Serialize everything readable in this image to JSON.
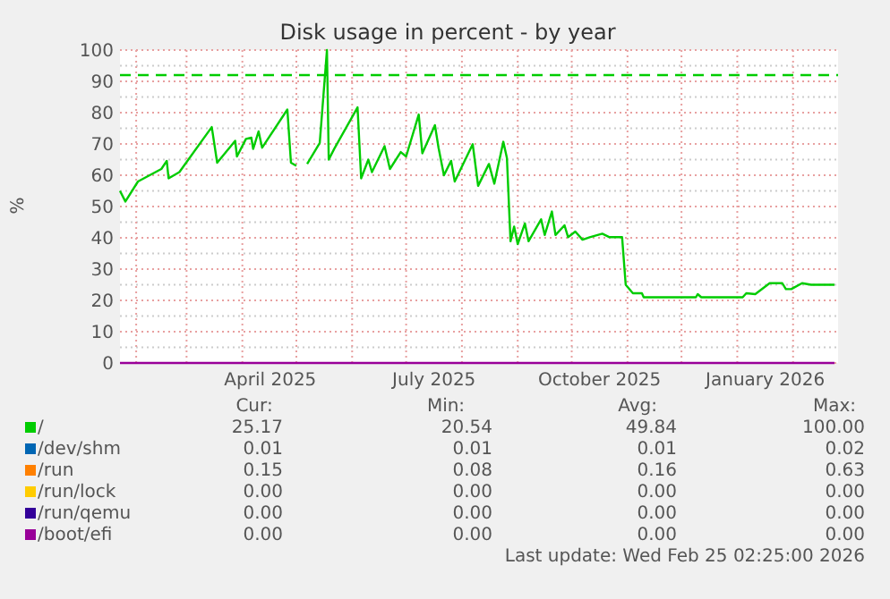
{
  "chart_data": {
    "type": "line",
    "title": "Disk usage in percent - by year",
    "ylabel": "%",
    "xlim": [
      "2025-01-23",
      "2026-02-26"
    ],
    "xticks": [
      {
        "value": "2025-02-01",
        "label": null
      },
      {
        "value": "2025-03-01",
        "label": null
      },
      {
        "value": "2025-04-01",
        "label": null
      },
      {
        "value": "2025-04-16",
        "label": "April 2025"
      },
      {
        "value": "2025-05-01",
        "label": null
      },
      {
        "value": "2025-06-01",
        "label": null
      },
      {
        "value": "2025-07-01",
        "label": null
      },
      {
        "value": "2025-07-16",
        "label": "July 2025"
      },
      {
        "value": "2025-08-01",
        "label": null
      },
      {
        "value": "2025-09-01",
        "label": null
      },
      {
        "value": "2025-10-01",
        "label": null
      },
      {
        "value": "2025-10-16",
        "label": "October 2025"
      },
      {
        "value": "2025-11-01",
        "label": null
      },
      {
        "value": "2025-12-01",
        "label": null
      },
      {
        "value": "2026-01-01",
        "label": null
      },
      {
        "value": "2026-01-16",
        "label": "January 2026"
      },
      {
        "value": "2026-02-01",
        "label": null
      }
    ],
    "ylim": [
      0,
      100
    ],
    "yticks": [
      0,
      {
        "value": 5,
        "label": null
      },
      10,
      {
        "value": 15,
        "label": null
      },
      20,
      {
        "value": 25,
        "label": null
      },
      30,
      {
        "value": 35,
        "label": null
      },
      40,
      {
        "value": 45,
        "label": null
      },
      50,
      {
        "value": 55,
        "label": null
      },
      60,
      {
        "value": 65,
        "label": null
      },
      70,
      {
        "value": 75,
        "label": null
      },
      80,
      {
        "value": 85,
        "label": null
      },
      90,
      {
        "value": 95,
        "label": null
      },
      100
    ],
    "grid": true,
    "legend": "bottom",
    "line_style": "solid",
    "ref_lines": [
      {
        "axis": "y",
        "value": 92,
        "label": null,
        "color": "#00cc00",
        "line_style": "dashed"
      }
    ],
    "series": [
      {
        "name": "/",
        "color": "#00cc00",
        "x": [
          "2025-01-23",
          "2025-01-26",
          "2025-02-02",
          "2025-02-15",
          "2025-02-18",
          "2025-02-19",
          "2025-02-25",
          "2025-03-15",
          "2025-03-18",
          "2025-03-28",
          "2025-03-29",
          "2025-04-03",
          "2025-04-06",
          "2025-04-07",
          "2025-04-10",
          "2025-04-12",
          "2025-04-26",
          "2025-04-28",
          "2025-05-01",
          "2025-05-04",
          "2025-05-07",
          "2025-05-14",
          "2025-05-18",
          "2025-05-19",
          "2025-05-22",
          "2025-06-04",
          "2025-06-06",
          "2025-06-10",
          "2025-06-12",
          "2025-06-19",
          "2025-06-22",
          "2025-06-28",
          "2025-07-01",
          "2025-07-08",
          "2025-07-10",
          "2025-07-17",
          "2025-07-19",
          "2025-07-22",
          "2025-07-26",
          "2025-07-28",
          "2025-08-07",
          "2025-08-10",
          "2025-08-16",
          "2025-08-19",
          "2025-08-24",
          "2025-08-26",
          "2025-08-28",
          "2025-08-30",
          "2025-09-01",
          "2025-09-05",
          "2025-09-07",
          "2025-09-14",
          "2025-09-16",
          "2025-09-20",
          "2025-09-22",
          "2025-09-27",
          "2025-09-29",
          "2025-10-03",
          "2025-10-07",
          "2025-10-11",
          "2025-10-18",
          "2025-10-22",
          "2025-10-29",
          "2025-10-31",
          "2025-11-04",
          "2025-11-09",
          "2025-11-10",
          "2025-12-09",
          "2025-12-10",
          "2025-12-12",
          "2026-01-04",
          "2026-01-06",
          "2026-01-11",
          "2026-01-19",
          "2026-01-26",
          "2026-01-28",
          "2026-01-31",
          "2026-02-06",
          "2026-02-11",
          "2026-02-24"
        ],
        "values": [
          55,
          51.6,
          58,
          62,
          64.6,
          59,
          61,
          75.4,
          64,
          71,
          66,
          71.6,
          72,
          68.4,
          74,
          68.8,
          81,
          64,
          63,
          null,
          63.6,
          70.3,
          100,
          65,
          68.4,
          81.7,
          59,
          65,
          61,
          69.3,
          62,
          67.4,
          66,
          79.4,
          67,
          76,
          68.8,
          60,
          64.6,
          58,
          69.9,
          56.6,
          63.6,
          57.3,
          70.7,
          65.5,
          38.9,
          43.6,
          38,
          44.6,
          38.9,
          45.9,
          40.9,
          48.4,
          40.9,
          44,
          40.2,
          42,
          39.4,
          40.2,
          41.3,
          40.2,
          40.2,
          25,
          22.3,
          22.3,
          21,
          21,
          22,
          21,
          21,
          22.3,
          22,
          25.5,
          25.5,
          23.6,
          23.6,
          25.5,
          25,
          25
        ]
      },
      {
        "name": "/dev/shm",
        "color": "#0066b3"
      },
      {
        "name": "/run",
        "color": "#ff8000"
      },
      {
        "name": "/run/lock",
        "color": "#ffcc00"
      },
      {
        "name": "/run/qemu",
        "color": "#330099"
      },
      {
        "name": "/boot/efi",
        "color": "#990099",
        "x": [
          "2025-01-23",
          "2026-02-24"
        ],
        "values": [
          0,
          0
        ]
      }
    ],
    "annotations": [
      "Cur:",
      "Min:",
      "Avg:",
      "Max:",
      "25.17",
      "20.54",
      "49.84",
      "100.00",
      "0.01",
      "0.01",
      "0.01",
      "0.02",
      "0.15",
      "0.08",
      "0.16",
      "0.63",
      "0.00",
      "0.00",
      "0.00",
      "0.00",
      "0.00",
      "0.00",
      "0.00",
      "0.00",
      "0.00",
      "0.00",
      "0.00",
      "0.00",
      "Last update: Wed Feb 25 02:25:00 2026"
    ]
  }
}
